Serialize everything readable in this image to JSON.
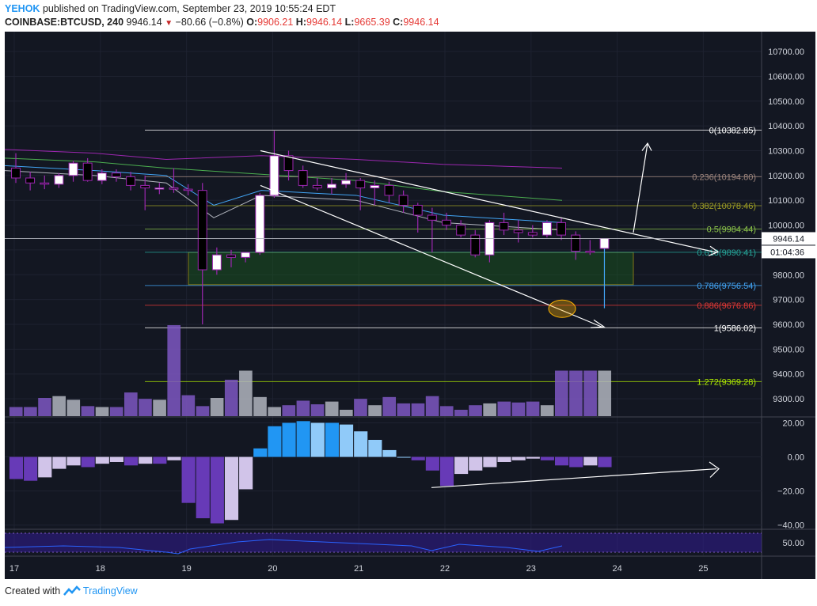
{
  "header": {
    "user": "YEHOK",
    "published": "published on TradingView.com, September 23, 2019 10:55:24 EDT",
    "symbol": "COINBASE:BTCUSD, 240",
    "last": "9946.14",
    "change": "−80.66 (−0.8%)",
    "o_label": "O:",
    "o": "9906.21",
    "h_label": "H:",
    "h": "9946.14",
    "l_label": "L:",
    "l": "9665.39",
    "c_label": "C:",
    "c": "9946.14"
  },
  "footer": {
    "created": "Created with",
    "brand": "TradingView"
  },
  "colors": {
    "background": "#131722",
    "grid": "#1e2230",
    "text": "#d1d4dc",
    "up_candle": "#ffffff",
    "down_candle": "#000000",
    "wick": "#9c27b0",
    "volume": [
      "#7e57c2",
      "#b2b5be"
    ],
    "fib_zone": "#1b5e20",
    "macd": [
      "#2196f3",
      "#90caf9",
      "#673ab7",
      "#d1c4e9"
    ],
    "rsi_band": "#311b92",
    "rsi_line": "#2962ff"
  },
  "chart_data": {
    "type": "candlestick",
    "x_ticks": [
      "17",
      "18",
      "19",
      "20",
      "21",
      "22",
      "23",
      "24",
      "25"
    ],
    "price_ticks": [
      "10700.00",
      "10600.00",
      "10500.00",
      "10400.00",
      "10300.00",
      "10200.00",
      "10100.00",
      "10000.00",
      "9900.00",
      "9800.00",
      "9700.00",
      "9600.00",
      "9500.00",
      "9400.00",
      "9300.00"
    ],
    "ylim": [
      9230,
      10780
    ],
    "candles": [
      [
        10230,
        10290,
        10170,
        10190
      ],
      [
        10190,
        10215,
        10140,
        10170
      ],
      [
        10170,
        10200,
        10145,
        10165
      ],
      [
        10165,
        10210,
        10150,
        10200
      ],
      [
        10200,
        10260,
        10175,
        10250
      ],
      [
        10250,
        10270,
        10175,
        10180
      ],
      [
        10180,
        10225,
        10165,
        10210
      ],
      [
        10210,
        10225,
        10175,
        10195
      ],
      [
        10195,
        10215,
        10140,
        10160
      ],
      [
        10160,
        10200,
        10060,
        10150
      ],
      [
        10150,
        10170,
        10125,
        10150
      ],
      [
        10150,
        10230,
        10130,
        10145
      ],
      [
        10145,
        10165,
        10120,
        10140
      ],
      [
        10140,
        10170,
        9600,
        9820
      ],
      [
        9820,
        9910,
        9800,
        9880
      ],
      [
        9880,
        9900,
        9830,
        9870
      ],
      [
        9870,
        9890,
        9850,
        9890
      ],
      [
        9890,
        10130,
        9880,
        10120
      ],
      [
        10120,
        10380,
        10110,
        10280
      ],
      [
        10280,
        10300,
        10180,
        10220
      ],
      [
        10220,
        10240,
        10150,
        10160
      ],
      [
        10160,
        10190,
        10140,
        10150
      ],
      [
        10150,
        10190,
        10125,
        10165
      ],
      [
        10165,
        10210,
        10150,
        10180
      ],
      [
        10180,
        10190,
        10060,
        10150
      ],
      [
        10150,
        10180,
        10080,
        10160
      ],
      [
        10160,
        10175,
        10090,
        10120
      ],
      [
        10120,
        10140,
        10050,
        10080
      ],
      [
        10080,
        10090,
        9970,
        10040
      ],
      [
        10040,
        10070,
        9890,
        10020
      ],
      [
        10020,
        10050,
        9980,
        10000
      ],
      [
        10000,
        10020,
        9950,
        9960
      ],
      [
        9960,
        9980,
        9870,
        9880
      ],
      [
        9880,
        10020,
        9850,
        10010
      ],
      [
        10010,
        10050,
        9960,
        9980
      ],
      [
        9980,
        10020,
        9930,
        9970
      ],
      [
        9970,
        10000,
        9950,
        9960
      ],
      [
        9960,
        10020,
        9950,
        10010
      ],
      [
        10010,
        10030,
        9940,
        9960
      ],
      [
        9960,
        9975,
        9860,
        9895
      ],
      [
        9895,
        9940,
        9880,
        9890
      ],
      [
        9906,
        9946,
        9665,
        9946
      ]
    ],
    "volume": [
      1,
      1,
      3,
      3,
      2,
      1,
      1,
      3,
      2,
      2,
      2,
      6,
      3,
      2,
      2,
      4,
      5,
      2,
      2,
      2,
      2,
      3,
      2,
      3,
      2,
      2,
      1,
      2,
      2,
      3,
      2,
      2,
      3,
      1,
      1,
      2,
      2,
      2,
      2,
      1,
      4,
      0
    ],
    "volume_heights": [
      0.1,
      0.1,
      0.2,
      0.22,
      0.18,
      0.11,
      0.1,
      0.1,
      0.26,
      0.19,
      0.18,
      1.0,
      0.23,
      0.11,
      0.2,
      0.4,
      0.5,
      0.21,
      0.1,
      0.12,
      0.17,
      0.13,
      0.16,
      0.07,
      0.19,
      0.12,
      0.21,
      0.14,
      0.14,
      0.22,
      0.11,
      0.07,
      0.12,
      0.14,
      0.16,
      0.15,
      0.16,
      0.12,
      0.5,
      0.5,
      0.5,
      0.5
    ],
    "price_labels": [
      {
        "label": "0(10382.85)",
        "value": 10382.85,
        "color": "#ffffff"
      },
      {
        "label": "0.236(10194.80)",
        "value": 10194.8,
        "color": "#a1887f"
      },
      {
        "label": "0.382(10078.46)",
        "value": 10078.46,
        "color": "#9e9d24"
      },
      {
        "label": "0.5(9984.44)",
        "value": 9984.44,
        "color": "#8bc34a"
      },
      {
        "label": "0.618(9890.41)",
        "value": 9890.41,
        "color": "#26a69a"
      },
      {
        "label": "0.786(9756.54)",
        "value": 9756.54,
        "color": "#42a5f5"
      },
      {
        "label": "0.886(9676.86)",
        "value": 9676.86,
        "color": "#e53935"
      },
      {
        "label": "1(9586.02)",
        "value": 9586.02,
        "color": "#ffffff"
      },
      {
        "label": "1.272(9369.28)",
        "value": 9369.28,
        "color": "#aeea00"
      }
    ],
    "last_price_tag": "9946.14",
    "countdown_tag": "01:04:36",
    "macd": {
      "ticks": [
        "20.00",
        "0.00",
        "−20.00",
        "−40.00"
      ],
      "ylim": [
        -42,
        23
      ],
      "values": [
        -13,
        -14,
        -12,
        -7,
        -5,
        -6,
        -4,
        -3,
        -5,
        -4,
        -4,
        -2,
        -27,
        -36,
        -39,
        -37,
        -19,
        5,
        18,
        20,
        21,
        20,
        20,
        19,
        15,
        10,
        4,
        0,
        -2,
        -8,
        -17,
        -10,
        -8,
        -6,
        -3,
        -2,
        -1,
        -2,
        -5,
        -6,
        -5,
        -6
      ]
    },
    "rsi": {
      "tick": "50.00",
      "band": [
        30,
        70
      ]
    }
  }
}
